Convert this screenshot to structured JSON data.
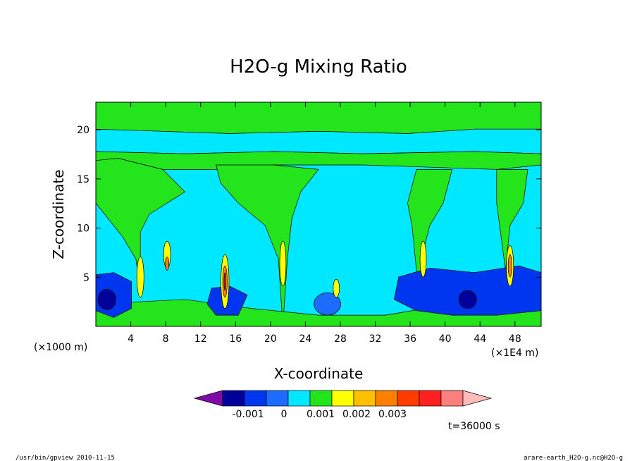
{
  "chart_data": {
    "type": "contour",
    "title": "H2O-g Mixing Ratio",
    "xlabel": "X-coordinate",
    "ylabel": "Z-coordinate",
    "x_unit_left": "(×1000 m)",
    "x_unit_right": "(×1E4 m)",
    "xlim": [
      0,
      51
    ],
    "ylim": [
      0,
      22.8
    ],
    "x_ticks": [
      "4",
      "8",
      "12",
      "16",
      "20",
      "24",
      "28",
      "32",
      "36",
      "40",
      "44",
      "48"
    ],
    "y_ticks": [
      "5",
      "10",
      "15",
      "20"
    ],
    "x_tick_values": [
      4,
      8,
      12,
      16,
      20,
      24,
      28,
      32,
      36,
      40,
      44,
      48
    ],
    "y_tick_values": [
      5,
      10,
      15,
      20
    ],
    "colorbar": {
      "colors": [
        "#7f0aa8",
        "#00009a",
        "#0036f0",
        "#1c6cff",
        "#00e8ff",
        "#24e41c",
        "#ffff00",
        "#ffc000",
        "#ff8000",
        "#ff3b00",
        "#ff2020",
        "#ff7f7f",
        "#ffbaba"
      ],
      "labels": [
        "-0.001",
        "0",
        "0.001",
        "0.002",
        "0.003"
      ]
    },
    "background_color": "#00e8ff",
    "time_label": "t=36000 s"
  },
  "footer": {
    "left": "/usr/bin/gpview  2010-11-15",
    "right": "arare-earth_H2O-g.nc@H2O-g"
  }
}
